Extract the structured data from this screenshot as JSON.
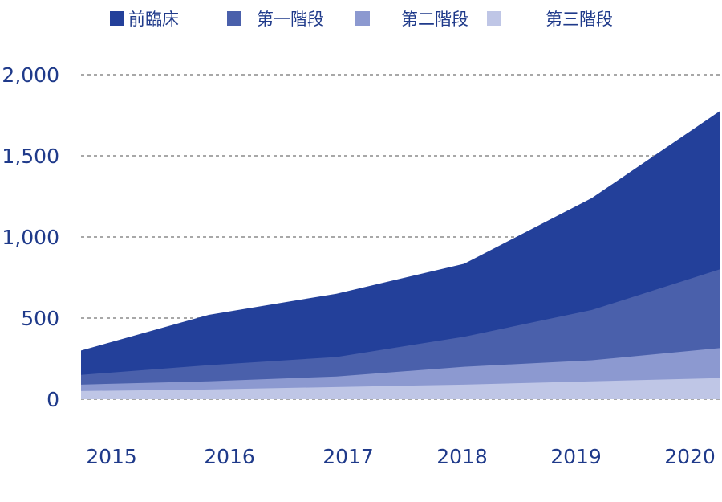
{
  "chart_data": {
    "type": "area",
    "stacked": true,
    "categories": [
      "2015",
      "2016",
      "2017",
      "2018",
      "2019",
      "2020"
    ],
    "x": [
      2015,
      2016,
      2017,
      2018,
      2019,
      2020
    ],
    "series": [
      {
        "name": "第三階段",
        "color": "#bfc6e6",
        "values": [
          50,
          60,
          75,
          90,
          110,
          130
        ]
      },
      {
        "name": "第二階段",
        "color": "#8c99d0",
        "values": [
          40,
          50,
          65,
          110,
          130,
          185
        ]
      },
      {
        "name": "第一階段",
        "color": "#4a60ab",
        "values": [
          60,
          100,
          120,
          185,
          310,
          485
        ]
      },
      {
        "name": "前臨床",
        "color": "#23409a",
        "values": [
          150,
          310,
          390,
          450,
          690,
          975
        ]
      }
    ],
    "legend_order": [
      "前臨床",
      "第一階段",
      "第二階段",
      "第三階段"
    ],
    "legend_position": "top",
    "ylim": [
      0,
      2000
    ],
    "yticks": [
      0,
      500,
      1000,
      1500,
      2000
    ],
    "ytick_labels": [
      "0",
      "500",
      "1,000",
      "1,500",
      "2,000"
    ],
    "grid": true,
    "title": "",
    "xlabel": "",
    "ylabel": ""
  }
}
